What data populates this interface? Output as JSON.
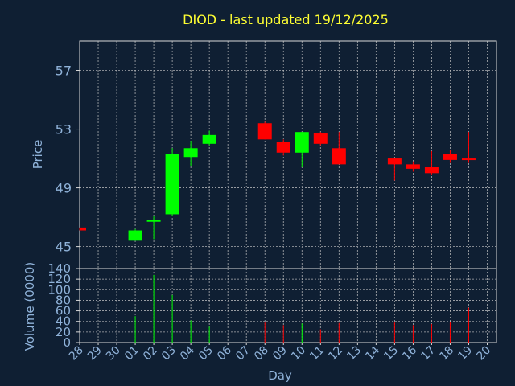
{
  "chart_data": {
    "type": "candlestick",
    "title": "DIOD - last updated 19/12/2025",
    "xlabel": "Day",
    "colors": {
      "up": "#00ff00",
      "down": "#ff0000",
      "background": "#0f1f33",
      "title": "#ffff33",
      "axis_text": "#8fb2d9"
    },
    "grid": true,
    "price_panel": {
      "ylabel": "Price",
      "ylim": [
        43.5,
        59
      ],
      "yticks": [
        "45",
        "49",
        "53",
        "57"
      ]
    },
    "volume_panel": {
      "ylabel": "Volume (0000)",
      "ylim": [
        0,
        140
      ],
      "yticks": [
        "0",
        "20",
        "40",
        "60",
        "80",
        "100",
        "120",
        "140"
      ]
    },
    "x_labels": [
      "28",
      "29",
      "30",
      "01",
      "02",
      "03",
      "04",
      "05",
      "06",
      "07",
      "08",
      "09",
      "10",
      "11",
      "12",
      "13",
      "14",
      "15",
      "16",
      "17",
      "18",
      "19",
      "20"
    ],
    "candles": [
      {
        "day": "28",
        "open": 46.3,
        "high": 46.3,
        "low": 46.1,
        "close": 46.1,
        "volume": 0
      },
      {
        "day": "01",
        "open": 45.4,
        "high": 46.2,
        "low": 45.4,
        "close": 46.1,
        "volume": 50
      },
      {
        "day": "02",
        "open": 46.7,
        "high": 47.1,
        "low": 45.5,
        "close": 46.8,
        "volume": 128
      },
      {
        "day": "03",
        "open": 47.2,
        "high": 51.7,
        "low": 47.1,
        "close": 51.3,
        "volume": 90
      },
      {
        "day": "04",
        "open": 51.1,
        "high": 52.2,
        "low": 50.5,
        "close": 51.7,
        "volume": 42
      },
      {
        "day": "05",
        "open": 52.0,
        "high": 52.9,
        "low": 51.9,
        "close": 52.6,
        "volume": 30
      },
      {
        "day": "08",
        "open": 53.4,
        "high": 53.5,
        "low": 52.3,
        "close": 52.3,
        "volume": 38
      },
      {
        "day": "09",
        "open": 52.1,
        "high": 52.3,
        "low": 51.2,
        "close": 51.4,
        "volume": 33
      },
      {
        "day": "10",
        "open": 51.4,
        "high": 52.8,
        "low": 50.4,
        "close": 52.8,
        "volume": 36
      },
      {
        "day": "11",
        "open": 52.7,
        "high": 52.8,
        "low": 51.9,
        "close": 52.0,
        "volume": 25
      },
      {
        "day": "12",
        "open": 51.7,
        "high": 52.8,
        "low": 50.6,
        "close": 50.6,
        "volume": 37
      },
      {
        "day": "15",
        "open": 51.0,
        "high": 51.0,
        "low": 49.5,
        "close": 50.6,
        "volume": 38
      },
      {
        "day": "16",
        "open": 50.6,
        "high": 50.8,
        "low": 50.1,
        "close": 50.3,
        "volume": 33
      },
      {
        "day": "17",
        "open": 50.4,
        "high": 51.5,
        "low": 49.9,
        "close": 50.0,
        "volume": 35
      },
      {
        "day": "18",
        "open": 51.3,
        "high": 51.6,
        "low": 50.7,
        "close": 50.9,
        "volume": 38
      },
      {
        "day": "19",
        "open": 51.0,
        "high": 52.8,
        "low": 50.7,
        "close": 50.9,
        "volume": 66
      }
    ]
  }
}
